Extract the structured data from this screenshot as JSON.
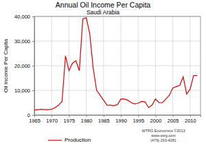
{
  "chart_data": {
    "type": "line",
    "title": "Annual Oil Income Per Capita",
    "subtitle": "Saudi Arabia",
    "y_label": "Oil Income Per Capita",
    "annotations": [
      "WTRG Economics ©2013",
      "www.wtrg.com",
      "(479) 293-4081"
    ],
    "x": [
      1965,
      1966,
      1967,
      1968,
      1969,
      1970,
      1971,
      1972,
      1973,
      1974,
      1975,
      1976,
      1977,
      1978,
      1979,
      1980,
      1981,
      1982,
      1983,
      1984,
      1985,
      1986,
      1987,
      1988,
      1989,
      1990,
      1991,
      1992,
      1993,
      1994,
      1995,
      1996,
      1997,
      1998,
      1999,
      2000,
      2001,
      2002,
      2003,
      2004,
      2005,
      2006,
      2007,
      2008,
      2009,
      2010,
      2011,
      2012
    ],
    "series": [
      {
        "name": "Production",
        "color": "#e00000",
        "values": [
          2000,
          2200,
          2300,
          2200,
          2200,
          2300,
          3000,
          4000,
          5500,
          24000,
          18000,
          21000,
          22000,
          18000,
          39000,
          39500,
          33000,
          19000,
          10000,
          8000,
          6000,
          4000,
          4000,
          3800,
          4200,
          6500,
          6500,
          6000,
          5000,
          4500,
          4800,
          5500,
          5300,
          3000,
          4000,
          6500,
          5000,
          5000,
          6500,
          8000,
          11000,
          11500,
          12000,
          15500,
          8500,
          10500,
          16000,
          16000
        ]
      }
    ],
    "xlim": [
      1965,
      2013
    ],
    "xticks": [
      1965,
      1970,
      1975,
      1980,
      1985,
      1990,
      1995,
      2000,
      2005,
      2010
    ],
    "ylim": [
      0,
      40000
    ],
    "yticks": [
      0,
      {
        "value": 10000,
        "label": "10,000"
      },
      {
        "value": 20000,
        "label": "20,000"
      },
      {
        "value": 30000,
        "label": "30,000"
      },
      {
        "value": 40000,
        "label": "40,000"
      }
    ],
    "grid": true,
    "legend": "bottom"
  }
}
